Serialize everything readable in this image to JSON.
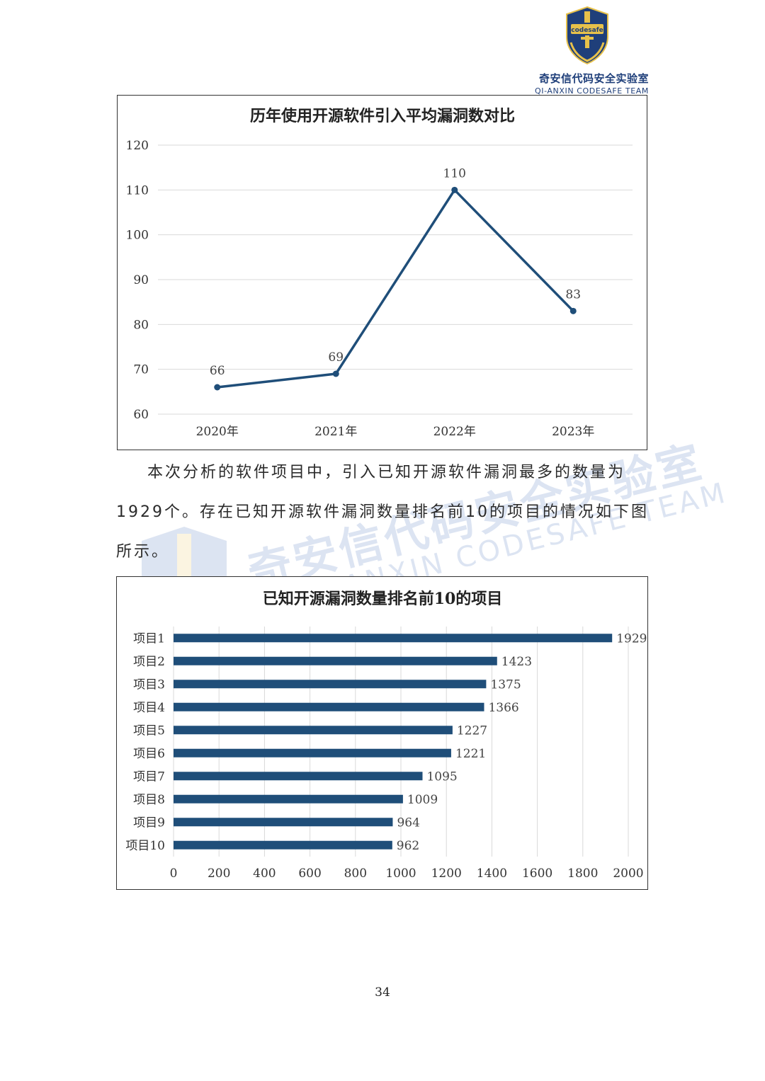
{
  "header": {
    "logo_badge_text": "codesafe",
    "logo_cn": "奇安信代码安全实验室",
    "logo_en": "QI-ANXIN CODESAFE TEAM"
  },
  "watermark": {
    "cn": "奇安信代码安全实验室",
    "en": "QI-ANXIN CODESAFE TEAM"
  },
  "paragraph": "本次分析的软件项目中，引入已知开源软件漏洞最多的数量为1929个。存在已知开源软件漏洞数量排名前10的项目的情况如下图所示。",
  "page_number": "34",
  "colors": {
    "series": "#1f4e79",
    "grid": "#d9d9d9",
    "brand": "#1f3f7a",
    "gold": "#e7c14a"
  },
  "chart_data": [
    {
      "type": "line",
      "title": "历年使用开源软件引入平均漏洞数对比",
      "categories": [
        "2020年",
        "2021年",
        "2022年",
        "2023年"
      ],
      "values": [
        66,
        69,
        110,
        83
      ],
      "data_labels": [
        "66",
        "69",
        "110",
        "83"
      ],
      "ylim": [
        60,
        120
      ],
      "yticks": [
        60,
        70,
        80,
        90,
        100,
        110,
        120
      ],
      "grid": true,
      "legend": "none"
    },
    {
      "type": "bar",
      "orientation": "horizontal",
      "title": "已知开源漏洞数量排名前10的项目",
      "categories": [
        "项目1",
        "项目2",
        "项目3",
        "项目4",
        "项目5",
        "项目6",
        "项目7",
        "项目8",
        "项目9",
        "项目10"
      ],
      "values": [
        1929,
        1423,
        1375,
        1366,
        1227,
        1221,
        1095,
        1009,
        964,
        962
      ],
      "xlim": [
        0,
        2000
      ],
      "xticks": [
        0,
        200,
        400,
        600,
        800,
        1000,
        1200,
        1400,
        1600,
        1800,
        2000
      ],
      "grid": true,
      "legend": "none"
    }
  ]
}
